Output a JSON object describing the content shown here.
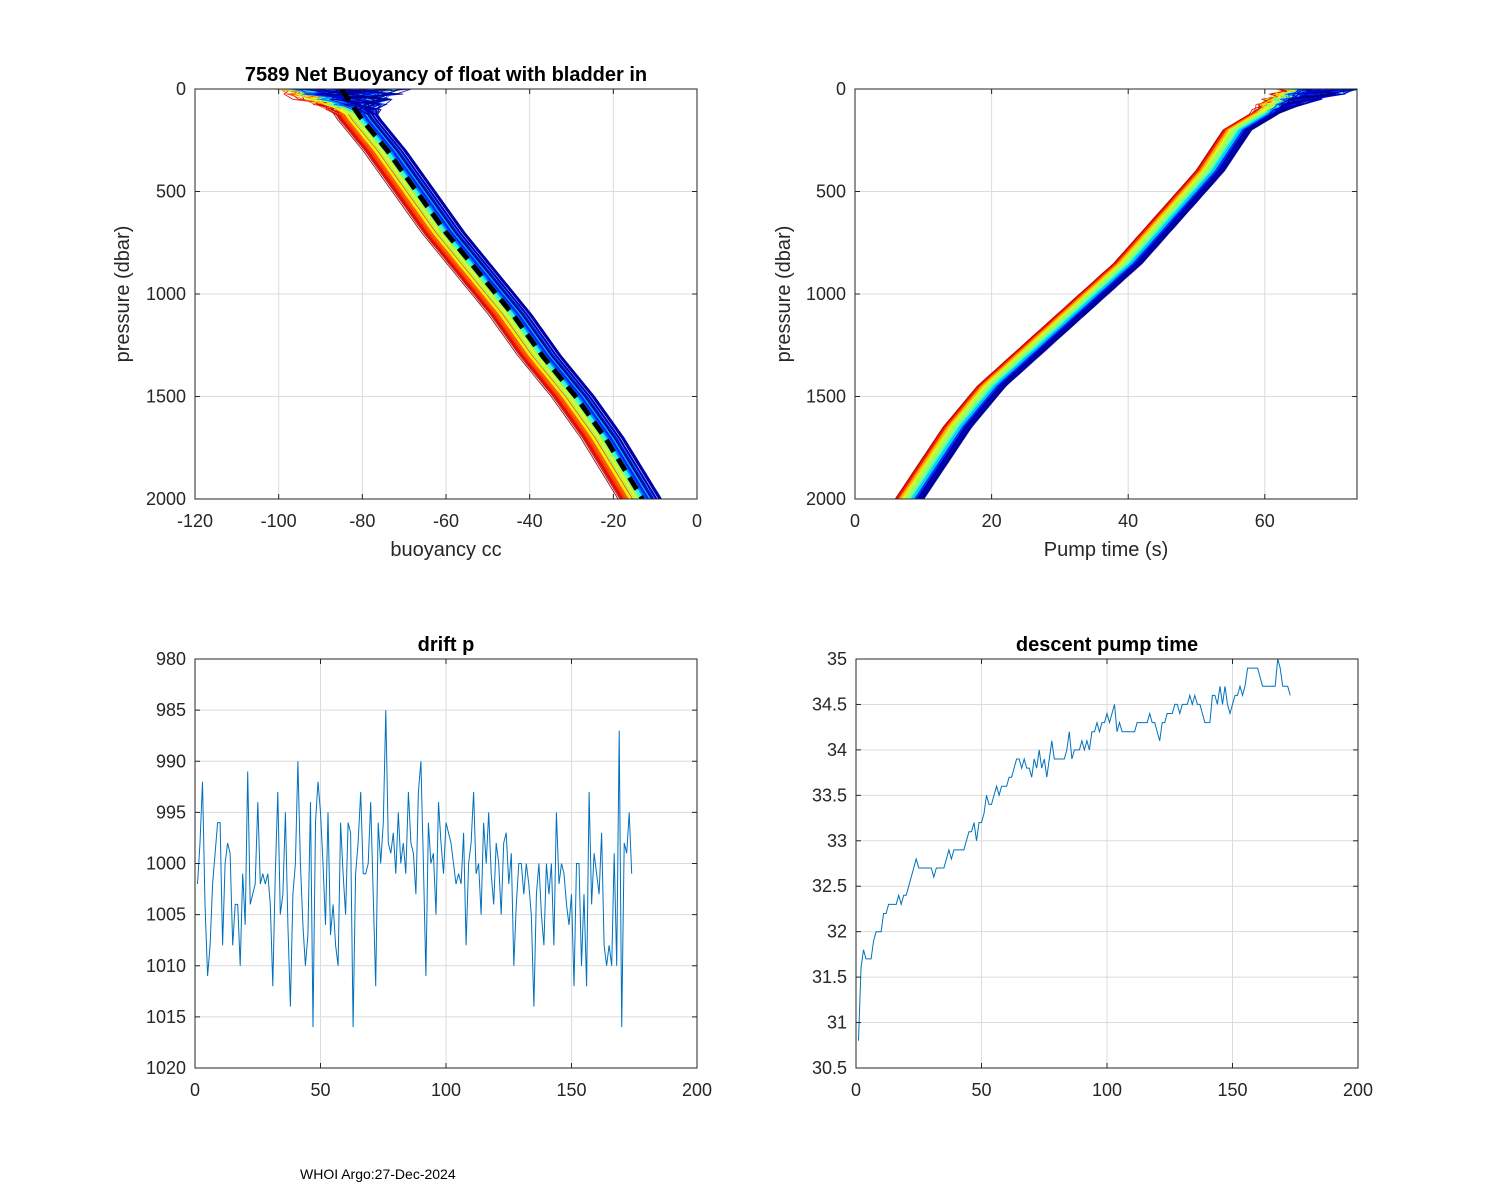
{
  "footer_text": "WHOI Argo:27-Dec-2024",
  "colors": {
    "grid": "#dcdcdc",
    "axis": "#262626",
    "line": "#0072BD",
    "mean": "#000000"
  },
  "chart_data": [
    {
      "id": "buoyancy",
      "type": "line",
      "title": "7589 Net Buoyancy of float with bladder in",
      "xlabel": "buoyancy cc",
      "ylabel": "pressure (dbar)",
      "xlim": [
        -120,
        0
      ],
      "ylim": [
        0,
        2000
      ],
      "y_reversed": true,
      "xticks": [
        -120,
        -100,
        -80,
        -60,
        -40,
        -20,
        0
      ],
      "yticks": [
        0,
        500,
        1000,
        1500,
        2000
      ],
      "series_colormap": "jet",
      "series_count": 174,
      "mean_profile": {
        "name": "mean",
        "style": "dashed-black",
        "x": [
          -85,
          -80,
          -74,
          -67,
          -60,
          -52,
          -44,
          -37,
          -29,
          -22,
          -16,
          -13
        ],
        "y": [
          0,
          150,
          300,
          500,
          700,
          900,
          1100,
          1300,
          1500,
          1700,
          1900,
          2000
        ]
      },
      "spread_envelope": {
        "low": -8,
        "high": 6
      }
    },
    {
      "id": "pumptime",
      "type": "line",
      "title": "",
      "xlabel": "Pump time (s)",
      "ylabel": "pressure (dbar)",
      "xlim": [
        0,
        73.5
      ],
      "ylim": [
        0,
        2000
      ],
      "y_reversed": true,
      "xticks": [
        0,
        20,
        40,
        60
      ],
      "yticks": [
        0,
        500,
        1000,
        1500,
        2000
      ],
      "series_colormap": "jet",
      "series_count": 174,
      "mean_profile": {
        "name": "mean",
        "x": [
          68,
          62,
          56,
          52,
          48,
          44,
          40,
          35,
          30,
          25,
          20,
          15,
          11,
          8
        ],
        "y": [
          0,
          80,
          200,
          400,
          550,
          700,
          850,
          1000,
          1150,
          1300,
          1450,
          1650,
          1850,
          2000
        ]
      },
      "spread_envelope": {
        "low": -3,
        "high": 3
      }
    },
    {
      "id": "driftp",
      "type": "line",
      "title": "drift p",
      "xlabel": "",
      "ylabel": "",
      "xlim": [
        0,
        200
      ],
      "ylim": [
        980,
        1020
      ],
      "y_reversed": true,
      "xticks": [
        0,
        50,
        100,
        150,
        200
      ],
      "yticks": [
        980,
        985,
        990,
        995,
        1000,
        1005,
        1010,
        1015,
        1020
      ],
      "series": [
        {
          "name": "drift p",
          "x_start": 1,
          "values": [
            1002,
            998,
            992,
            1004,
            1011,
            1008,
            1002,
            999,
            996,
            996,
            1008,
            1000,
            998,
            999,
            1008,
            1004,
            1004,
            1010,
            1001,
            1006,
            991,
            1004,
            1003,
            1002,
            994,
            1002,
            1001,
            1002,
            1001,
            1004,
            1012,
            1001,
            993,
            1005,
            1003,
            995,
            1006,
            1014,
            1003,
            1000,
            990,
            1000,
            1006,
            1010,
            1007,
            994,
            1016,
            996,
            992,
            995,
            1000,
            1006,
            995,
            1007,
            1004,
            1008,
            1010,
            996,
            1001,
            1005,
            996,
            997,
            1016,
            1001,
            998,
            993,
            1001,
            1001,
            1000,
            994,
            1003,
            1012,
            996,
            1000,
            996,
            985,
            998,
            999,
            997,
            1001,
            995,
            1000,
            998,
            1001,
            993,
            998,
            999,
            1003,
            993,
            990,
            1000,
            1011,
            996,
            1000,
            999,
            1005,
            994,
            998,
            1001,
            996,
            997,
            998,
            1000,
            1002,
            1001,
            1002,
            997,
            1008,
            1000,
            998,
            993,
            1001,
            1000,
            1005,
            996,
            1000,
            995,
            1001,
            1004,
            998,
            1000,
            1005,
            998,
            997,
            1002,
            999,
            1010,
            1004,
            1000,
            1000,
            1003,
            1000,
            1002,
            1005,
            1014,
            1003,
            1000,
            1005,
            1008,
            1000,
            1003,
            1000,
            1008,
            995,
            1002,
            1000,
            1001,
            1004,
            1006,
            1003,
            1012,
            1000,
            1000,
            1010,
            1003,
            1012,
            993,
            1004,
            999,
            1001,
            1003,
            997,
            1008,
            1010,
            1008,
            1010,
            999,
            1010,
            987,
            1016,
            998,
            999,
            995,
            1001
          ]
        }
      ]
    },
    {
      "id": "descentpump",
      "type": "line",
      "title": "descent pump time",
      "xlabel": "",
      "ylabel": "",
      "xlim": [
        0,
        200
      ],
      "ylim": [
        30.5,
        35
      ],
      "y_reversed": false,
      "xticks": [
        0,
        50,
        100,
        150,
        200
      ],
      "yticks": [
        30.5,
        31,
        31.5,
        32,
        32.5,
        33,
        33.5,
        34,
        34.5,
        35
      ],
      "ytick_labels": [
        "30.5",
        "31",
        "31.5",
        "32",
        "32.5",
        "33",
        "33.5",
        "34",
        "34.5",
        "35"
      ],
      "series": [
        {
          "name": "descent pump time",
          "x": [
            1,
            2,
            3,
            4,
            5,
            6,
            7,
            8,
            9,
            10,
            11,
            12,
            13,
            14,
            15,
            16,
            17,
            18,
            19,
            20,
            21,
            22,
            23,
            24,
            25,
            26,
            27,
            28,
            29,
            30,
            31,
            32,
            33,
            34,
            35,
            36,
            37,
            38,
            39,
            40,
            41,
            42,
            43,
            44,
            45,
            46,
            47,
            48,
            49,
            50,
            51,
            52,
            53,
            54,
            55,
            56,
            57,
            58,
            59,
            60,
            61,
            62,
            63,
            64,
            65,
            66,
            67,
            68,
            69,
            70,
            71,
            72,
            73,
            74,
            75,
            76,
            77,
            78,
            79,
            80,
            81,
            82,
            83,
            84,
            85,
            86,
            87,
            88,
            89,
            90,
            91,
            92,
            93,
            94,
            95,
            96,
            97,
            98,
            99,
            100,
            101,
            102,
            103,
            104,
            105,
            106,
            107,
            108,
            109,
            110,
            111,
            112,
            113,
            114,
            115,
            116,
            117,
            118,
            119,
            120,
            121,
            122,
            123,
            124,
            125,
            126,
            127,
            128,
            129,
            130,
            131,
            132,
            133,
            134,
            135,
            136,
            137,
            138,
            139,
            140,
            141,
            142,
            143,
            144,
            145,
            146,
            147,
            148,
            149,
            150,
            151,
            152,
            153,
            154,
            155,
            156,
            157,
            158,
            159,
            160,
            161,
            162,
            163,
            164,
            165,
            166,
            167,
            168,
            169,
            170,
            171,
            172,
            173
          ],
          "values": [
            30.8,
            31.6,
            31.8,
            31.7,
            31.7,
            31.7,
            31.9,
            32.0,
            32.0,
            32.0,
            32.2,
            32.2,
            32.3,
            32.3,
            32.3,
            32.3,
            32.4,
            32.3,
            32.4,
            32.4,
            32.5,
            32.6,
            32.7,
            32.8,
            32.7,
            32.7,
            32.7,
            32.7,
            32.7,
            32.7,
            32.6,
            32.7,
            32.7,
            32.7,
            32.7,
            32.8,
            32.9,
            32.8,
            32.9,
            32.9,
            32.9,
            32.9,
            32.9,
            33.0,
            33.1,
            33.1,
            33.2,
            33.0,
            33.2,
            33.2,
            33.3,
            33.5,
            33.4,
            33.4,
            33.5,
            33.6,
            33.5,
            33.6,
            33.6,
            33.6,
            33.7,
            33.7,
            33.8,
            33.9,
            33.9,
            33.8,
            33.9,
            33.8,
            33.8,
            33.7,
            33.9,
            33.8,
            34.0,
            33.8,
            33.9,
            33.7,
            33.9,
            34.1,
            33.9,
            33.9,
            33.9,
            33.9,
            33.9,
            34.0,
            34.2,
            33.9,
            34.0,
            34.0,
            34.0,
            34.1,
            34.0,
            34.1,
            34.0,
            34.2,
            34.2,
            34.3,
            34.2,
            34.3,
            34.3,
            34.4,
            34.3,
            34.4,
            34.5,
            34.2,
            34.3,
            34.2,
            34.2,
            34.2,
            34.2,
            34.2,
            34.2,
            34.3,
            34.3,
            34.3,
            34.3,
            34.3,
            34.4,
            34.3,
            34.3,
            34.2,
            34.1,
            34.3,
            34.3,
            34.4,
            34.4,
            34.4,
            34.5,
            34.5,
            34.4,
            34.5,
            34.5,
            34.5,
            34.6,
            34.5,
            34.6,
            34.5,
            34.5,
            34.4,
            34.3,
            34.3,
            34.3,
            34.6,
            34.6,
            34.5,
            34.7,
            34.5,
            34.7,
            34.5,
            34.4,
            34.5,
            34.6,
            34.6,
            34.7,
            34.6,
            34.7,
            34.9,
            34.9,
            34.9,
            34.9,
            34.9,
            34.8,
            34.7,
            34.7,
            34.7,
            34.7,
            34.7,
            34.7,
            35.0,
            34.9,
            34.7,
            34.7,
            34.7,
            34.6
          ]
        }
      ]
    }
  ]
}
